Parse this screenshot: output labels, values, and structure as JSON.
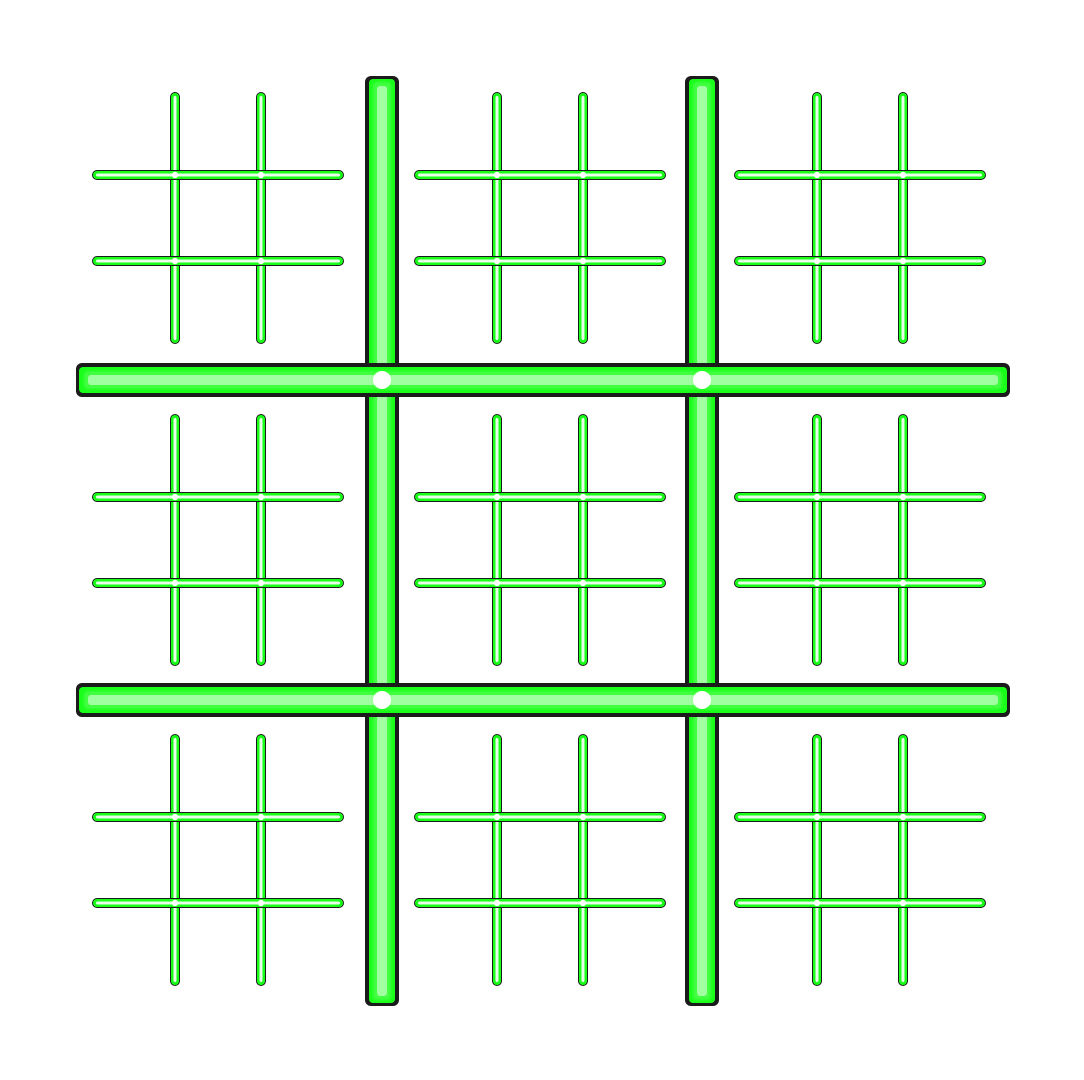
{
  "game": {
    "kind": "ultimate-tic-tac-toe",
    "board": {
      "rows": 3,
      "cols": 3,
      "sub_rows": 3,
      "sub_cols": 3,
      "marks": [
        [
          [
            "",
            "",
            "",
            "",
            "",
            "",
            "",
            "",
            ""
          ],
          [
            "",
            "",
            "",
            "",
            "",
            "",
            "",
            "",
            ""
          ],
          [
            "",
            "",
            "",
            "",
            "",
            "",
            "",
            "",
            ""
          ]
        ],
        [
          [
            "",
            "",
            "",
            "",
            "",
            "",
            "",
            "",
            ""
          ],
          [
            "",
            "",
            "",
            "",
            "",
            "",
            "",
            "",
            ""
          ],
          [
            "",
            "",
            "",
            "",
            "",
            "",
            "",
            "",
            ""
          ]
        ],
        [
          [
            "",
            "",
            "",
            "",
            "",
            "",
            "",
            "",
            ""
          ],
          [
            "",
            "",
            "",
            "",
            "",
            "",
            "",
            "",
            ""
          ],
          [
            "",
            "",
            "",
            "",
            "",
            "",
            "",
            "",
            ""
          ]
        ]
      ]
    },
    "colors": {
      "background": "#ffffff",
      "glow": "#19ff19",
      "core": "#e9ffe9",
      "outline": "#1b1b1b"
    }
  }
}
